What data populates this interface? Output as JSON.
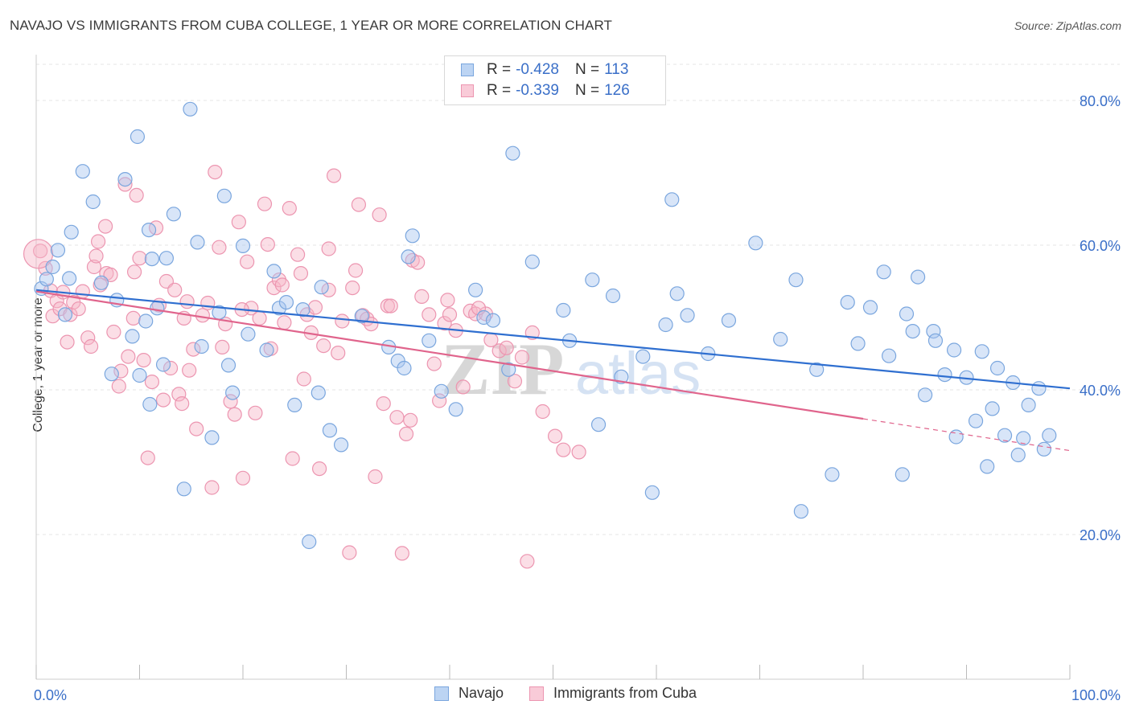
{
  "header": {
    "title": "NAVAJO VS IMMIGRANTS FROM CUBA COLLEGE, 1 YEAR OR MORE CORRELATION CHART",
    "source": "Source: ZipAtlas.com"
  },
  "watermark": "ZIPatlas",
  "legend": {
    "rows": [
      {
        "r_label": "R =",
        "r_value": "-0.428",
        "n_label": "N =",
        "n_value": "113"
      },
      {
        "r_label": "R =",
        "r_value": "-0.339",
        "n_label": "N =",
        "n_value": "126"
      }
    ]
  },
  "bottom_legend": [
    "Navajo",
    "Immigrants from Cuba"
  ],
  "colors": {
    "navajo_fill": "#a9c6ef",
    "navajo_stroke": "#7aa6de",
    "navajo_line": "#2f6fd0",
    "cuba_fill": "#f6b6c8",
    "cuba_stroke": "#ec95b0",
    "cuba_line": "#e0648c",
    "axis_text": "#3a6fc8",
    "grid": "#e4e4e4"
  },
  "chart_data": {
    "type": "scatter",
    "title": "NAVAJO VS IMMIGRANTS FROM CUBA COLLEGE, 1 YEAR OR MORE CORRELATION CHART",
    "xlabel": "",
    "ylabel": "College, 1 year or more",
    "xlim": [
      0,
      100
    ],
    "ylim": [
      0,
      85
    ],
    "x_tick_labels": [
      "0.0%",
      "100.0%"
    ],
    "y_ticks": [
      20,
      40,
      60,
      80
    ],
    "y_tick_labels": [
      "20.0%",
      "40.0%",
      "60.0%",
      "80.0%"
    ],
    "grid": true,
    "legend_position": "top-center",
    "series": [
      {
        "name": "Navajo",
        "r": -0.428,
        "n": 113,
        "trend": {
          "x": [
            0,
            100
          ],
          "y": [
            53.8,
            40.2
          ]
        },
        "points": [
          [
            0.5,
            54
          ],
          [
            1,
            55.3
          ],
          [
            1.6,
            57
          ],
          [
            2.1,
            59.3
          ],
          [
            2.8,
            50.4
          ],
          [
            3.2,
            55.4
          ],
          [
            3.4,
            61.8
          ],
          [
            4.5,
            70.2
          ],
          [
            5.5,
            66
          ],
          [
            6.3,
            54.8
          ],
          [
            7.3,
            42.2
          ],
          [
            7.8,
            52.4
          ],
          [
            8.6,
            69.1
          ],
          [
            9.3,
            47.4
          ],
          [
            9.8,
            75
          ],
          [
            10,
            42
          ],
          [
            10.6,
            49.5
          ],
          [
            10.9,
            62.1
          ],
          [
            11,
            38
          ],
          [
            11.2,
            58.1
          ],
          [
            11.7,
            51.3
          ],
          [
            12.3,
            43.5
          ],
          [
            12.6,
            58.2
          ],
          [
            13.3,
            64.3
          ],
          [
            14.3,
            26.3
          ],
          [
            14.9,
            78.8
          ],
          [
            15.6,
            60.4
          ],
          [
            16,
            46
          ],
          [
            17,
            33.4
          ],
          [
            17.7,
            50.7
          ],
          [
            18.2,
            66.8
          ],
          [
            18.6,
            43.4
          ],
          [
            19,
            39.6
          ],
          [
            20,
            59.9
          ],
          [
            20.5,
            47.7
          ],
          [
            22.3,
            45.5
          ],
          [
            23,
            56.4
          ],
          [
            23.5,
            51.3
          ],
          [
            24.2,
            52.1
          ],
          [
            25,
            37.9
          ],
          [
            25.8,
            51.1
          ],
          [
            26.4,
            19
          ],
          [
            27.3,
            39.6
          ],
          [
            27.6,
            54.2
          ],
          [
            28.4,
            34.4
          ],
          [
            29.5,
            32.4
          ],
          [
            31.5,
            50.2
          ],
          [
            34.1,
            45.9
          ],
          [
            35,
            44
          ],
          [
            35.6,
            43
          ],
          [
            36,
            58.4
          ],
          [
            36.4,
            61.3
          ],
          [
            38,
            46.8
          ],
          [
            39.2,
            39.8
          ],
          [
            40.6,
            37.3
          ],
          [
            42.5,
            53.8
          ],
          [
            43.3,
            50
          ],
          [
            44.2,
            49.6
          ],
          [
            45.7,
            42.8
          ],
          [
            46.1,
            72.7
          ],
          [
            48,
            57.7
          ],
          [
            51,
            51
          ],
          [
            51.6,
            46.8
          ],
          [
            53.8,
            55.2
          ],
          [
            54.4,
            35.2
          ],
          [
            55.8,
            53
          ],
          [
            56.6,
            41.8
          ],
          [
            58.7,
            44.6
          ],
          [
            59.6,
            25.8
          ],
          [
            60.9,
            49
          ],
          [
            61.5,
            66.3
          ],
          [
            62,
            53.3
          ],
          [
            63,
            50.3
          ],
          [
            65,
            45
          ],
          [
            67,
            49.6
          ],
          [
            69.6,
            60.3
          ],
          [
            72,
            47
          ],
          [
            73.5,
            55.2
          ],
          [
            74,
            23.2
          ],
          [
            75.5,
            42.8
          ],
          [
            77,
            28.3
          ],
          [
            78.5,
            52.1
          ],
          [
            79.5,
            46.4
          ],
          [
            80.7,
            51.4
          ],
          [
            82,
            56.3
          ],
          [
            82.5,
            44.7
          ],
          [
            83.8,
            28.3
          ],
          [
            84.2,
            50.5
          ],
          [
            84.8,
            48.1
          ],
          [
            85.3,
            55.6
          ],
          [
            86,
            39.3
          ],
          [
            86.8,
            48.1
          ],
          [
            87,
            46.8
          ],
          [
            87.9,
            42.1
          ],
          [
            88.8,
            45.5
          ],
          [
            89,
            33.5
          ],
          [
            90,
            41.7
          ],
          [
            90.9,
            35.7
          ],
          [
            91.5,
            45.3
          ],
          [
            92,
            29.4
          ],
          [
            92.5,
            37.4
          ],
          [
            93,
            43
          ],
          [
            93.7,
            33.7
          ],
          [
            94.5,
            41
          ],
          [
            95,
            31
          ],
          [
            95.5,
            33.3
          ],
          [
            96,
            37.9
          ],
          [
            97,
            40.2
          ],
          [
            97.5,
            31.8
          ],
          [
            98,
            33.7
          ]
        ]
      },
      {
        "name": "Immigrants from Cuba",
        "r": -0.339,
        "n": 126,
        "trend": {
          "x": [
            0,
            80
          ],
          "y": [
            53.6,
            36.0
          ]
        },
        "trend_dashed": {
          "x": [
            80,
            100
          ],
          "y": [
            36.0,
            31.6
          ]
        },
        "points": [
          [
            0.4,
            59.2
          ],
          [
            0.9,
            56.8
          ],
          [
            1.4,
            53.7
          ],
          [
            1.6,
            50.2
          ],
          [
            2,
            52.3
          ],
          [
            2.3,
            51.2
          ],
          [
            2.6,
            53.5
          ],
          [
            3,
            46.6
          ],
          [
            3.3,
            50.4
          ],
          [
            3.6,
            52.1
          ],
          [
            4.1,
            51.2
          ],
          [
            4.5,
            53.6
          ],
          [
            5,
            47.2
          ],
          [
            5.3,
            46
          ],
          [
            5.6,
            57
          ],
          [
            5.8,
            58.5
          ],
          [
            6,
            60.5
          ],
          [
            6.2,
            54.5
          ],
          [
            6.7,
            62.6
          ],
          [
            6.8,
            56.1
          ],
          [
            7.2,
            55.9
          ],
          [
            7.5,
            48
          ],
          [
            8,
            40.5
          ],
          [
            8.2,
            42.6
          ],
          [
            8.6,
            68.4
          ],
          [
            8.9,
            44.6
          ],
          [
            9.4,
            49.9
          ],
          [
            9.7,
            66.9
          ],
          [
            10,
            58.2
          ],
          [
            10.4,
            44.1
          ],
          [
            10.8,
            30.6
          ],
          [
            11.2,
            41.1
          ],
          [
            11.6,
            62.4
          ],
          [
            11.9,
            51.7
          ],
          [
            12.3,
            38.6
          ],
          [
            12.6,
            55
          ],
          [
            13,
            43
          ],
          [
            13.4,
            53.8
          ],
          [
            13.8,
            39.4
          ],
          [
            14.1,
            38.1
          ],
          [
            14.3,
            49.9
          ],
          [
            14.8,
            42.7
          ],
          [
            15.2,
            45.6
          ],
          [
            15.5,
            34.6
          ],
          [
            16.1,
            50.3
          ],
          [
            16.6,
            52
          ],
          [
            17,
            26.5
          ],
          [
            17.3,
            70.1
          ],
          [
            17.7,
            59.7
          ],
          [
            18,
            45.9
          ],
          [
            18.3,
            49.1
          ],
          [
            18.8,
            38.4
          ],
          [
            19.2,
            36.6
          ],
          [
            19.6,
            63.2
          ],
          [
            20,
            27.8
          ],
          [
            20.4,
            57.7
          ],
          [
            20.8,
            51.3
          ],
          [
            21.2,
            36.8
          ],
          [
            21.6,
            49.9
          ],
          [
            22.1,
            65.7
          ],
          [
            22.4,
            60.1
          ],
          [
            22.7,
            45.7
          ],
          [
            23,
            54.1
          ],
          [
            23.5,
            55.2
          ],
          [
            24,
            49.3
          ],
          [
            24.5,
            65.1
          ],
          [
            24.8,
            30.5
          ],
          [
            25.3,
            58.7
          ],
          [
            25.6,
            56.1
          ],
          [
            25.9,
            41.5
          ],
          [
            26.2,
            50.4
          ],
          [
            26.6,
            47.9
          ],
          [
            27,
            51.4
          ],
          [
            27.4,
            29.1
          ],
          [
            27.8,
            46.1
          ],
          [
            28.3,
            53.8
          ],
          [
            28.8,
            69.6
          ],
          [
            29.2,
            45.1
          ],
          [
            29.6,
            49.5
          ],
          [
            30.3,
            17.5
          ],
          [
            30.6,
            54.1
          ],
          [
            30.9,
            56.5
          ],
          [
            31.2,
            65.6
          ],
          [
            31.6,
            50.3
          ],
          [
            32,
            49.8
          ],
          [
            32.4,
            49.1
          ],
          [
            32.8,
            28
          ],
          [
            33.2,
            64.2
          ],
          [
            33.6,
            38.1
          ],
          [
            34,
            51.6
          ],
          [
            34.3,
            51.6
          ],
          [
            34.9,
            36.2
          ],
          [
            35.4,
            17.4
          ],
          [
            35.8,
            33.9
          ],
          [
            36.4,
            57.9
          ],
          [
            36.9,
            57.6
          ],
          [
            37.3,
            52.9
          ],
          [
            38,
            50.4
          ],
          [
            38.5,
            43.6
          ],
          [
            39,
            38.5
          ],
          [
            39.5,
            49.2
          ],
          [
            40,
            50.4
          ],
          [
            40.6,
            48.2
          ],
          [
            41.3,
            40.4
          ],
          [
            42,
            50.9
          ],
          [
            42.5,
            50.5
          ],
          [
            43.5,
            50.5
          ],
          [
            44,
            46.9
          ],
          [
            44.8,
            45.4
          ],
          [
            45.5,
            45.8
          ],
          [
            46.3,
            41.2
          ],
          [
            47,
            44.5
          ],
          [
            47.5,
            16.3
          ],
          [
            48,
            47.9
          ],
          [
            49,
            37
          ],
          [
            50.2,
            33.6
          ],
          [
            51,
            31.7
          ],
          [
            52.5,
            31.4
          ],
          [
            42.8,
            51.3
          ],
          [
            36.2,
            35.8
          ],
          [
            9.5,
            56.3
          ],
          [
            19.9,
            51.1
          ],
          [
            23.8,
            54.5
          ],
          [
            14.6,
            52.2
          ],
          [
            28.3,
            59.5
          ],
          [
            39.8,
            52.4
          ]
        ]
      }
    ]
  }
}
